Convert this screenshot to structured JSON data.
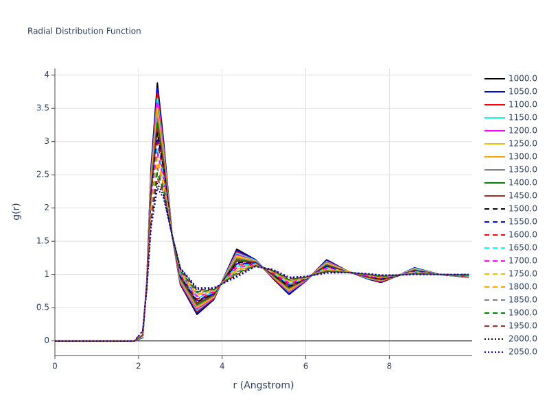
{
  "chart_data": {
    "type": "line",
    "title": "Radial Distribution Function",
    "x_label": "r (Angstrom)",
    "y_label": "g(r)",
    "xlim": [
      0,
      9.98
    ],
    "ylim": [
      -0.22,
      4.1
    ],
    "xticks": [
      0,
      2,
      4,
      6,
      8
    ],
    "yticks": [
      0,
      0.5,
      1,
      1.5,
      2,
      2.5,
      3,
      3.5,
      4
    ],
    "grid": true,
    "legend": "right",
    "x": [
      0,
      1.9,
      2.1,
      2.2,
      2.3,
      2.45,
      2.6,
      2.8,
      3.0,
      3.4,
      3.8,
      4.35,
      4.8,
      5.2,
      5.6,
      6.0,
      6.5,
      7.0,
      7.5,
      7.8,
      8.2,
      8.6,
      9.2,
      9.9
    ],
    "series": [
      {
        "name": "1000.0",
        "color": "#000000",
        "dash": "solid",
        "values": [
          0,
          0,
          0.05,
          0.9,
          2.6,
          3.88,
          3.0,
          1.6,
          0.85,
          0.4,
          0.62,
          1.38,
          1.22,
          0.95,
          0.7,
          0.9,
          1.22,
          1.05,
          0.93,
          0.88,
          0.98,
          1.1,
          1.0,
          0.96
        ]
      },
      {
        "name": "1050.0",
        "color": "#0000ff",
        "dash": "solid",
        "values": [
          0,
          0,
          0.05,
          0.9,
          2.56,
          3.8,
          2.96,
          1.6,
          0.86,
          0.42,
          0.63,
          1.36,
          1.22,
          0.96,
          0.71,
          0.9,
          1.21,
          1.05,
          0.93,
          0.89,
          0.98,
          1.1,
          1.0,
          0.96
        ]
      },
      {
        "name": "1100.0",
        "color": "#ff0000",
        "dash": "solid",
        "values": [
          0,
          0,
          0.06,
          0.89,
          2.51,
          3.73,
          2.92,
          1.6,
          0.87,
          0.44,
          0.64,
          1.34,
          1.21,
          0.96,
          0.73,
          0.91,
          1.2,
          1.05,
          0.94,
          0.89,
          0.98,
          1.09,
          1.0,
          0.96
        ]
      },
      {
        "name": "1150.0",
        "color": "#00ffff",
        "dash": "solid",
        "values": [
          0,
          0,
          0.06,
          0.89,
          2.47,
          3.65,
          2.88,
          1.6,
          0.89,
          0.46,
          0.65,
          1.32,
          1.21,
          0.97,
          0.74,
          0.91,
          1.19,
          1.05,
          0.94,
          0.9,
          0.98,
          1.09,
          1.0,
          0.97
        ]
      },
      {
        "name": "1200.0",
        "color": "#ff00ff",
        "dash": "solid",
        "values": [
          0,
          0,
          0.07,
          0.88,
          2.43,
          3.58,
          2.84,
          1.6,
          0.9,
          0.48,
          0.65,
          1.3,
          1.2,
          0.97,
          0.75,
          0.91,
          1.18,
          1.05,
          0.95,
          0.9,
          0.98,
          1.08,
          1.0,
          0.97
        ]
      },
      {
        "name": "1250.0",
        "color": "#f2c200",
        "dash": "solid",
        "values": [
          0,
          0,
          0.07,
          0.88,
          2.39,
          3.5,
          2.8,
          1.6,
          0.91,
          0.5,
          0.66,
          1.28,
          1.2,
          0.98,
          0.76,
          0.92,
          1.17,
          1.05,
          0.95,
          0.91,
          0.98,
          1.08,
          1.0,
          0.97
        ]
      },
      {
        "name": "1300.0",
        "color": "#ffa500",
        "dash": "solid",
        "values": [
          0,
          0,
          0.08,
          0.87,
          2.34,
          3.43,
          2.76,
          1.6,
          0.92,
          0.51,
          0.67,
          1.26,
          1.19,
          0.99,
          0.77,
          0.92,
          1.16,
          1.04,
          0.95,
          0.91,
          0.98,
          1.07,
          1.0,
          0.97
        ]
      },
      {
        "name": "1350.0",
        "color": "#808080",
        "dash": "solid",
        "values": [
          0,
          0,
          0.08,
          0.87,
          2.3,
          3.35,
          2.72,
          1.6,
          0.93,
          0.53,
          0.68,
          1.24,
          1.19,
          0.99,
          0.79,
          0.92,
          1.15,
          1.04,
          0.96,
          0.92,
          0.98,
          1.07,
          1.0,
          0.97
        ]
      },
      {
        "name": "1400.0",
        "color": "#008000",
        "dash": "solid",
        "values": [
          0,
          0,
          0.09,
          0.86,
          2.26,
          3.28,
          2.68,
          1.6,
          0.95,
          0.55,
          0.69,
          1.22,
          1.18,
          1.0,
          0.8,
          0.93,
          1.14,
          1.04,
          0.96,
          0.92,
          0.98,
          1.06,
          1.0,
          0.98
        ]
      },
      {
        "name": "1450.0",
        "color": "#a52a2a",
        "dash": "solid",
        "values": [
          0,
          0,
          0.09,
          0.86,
          2.21,
          3.2,
          2.64,
          1.6,
          0.96,
          0.57,
          0.7,
          1.2,
          1.18,
          1.01,
          0.81,
          0.93,
          1.13,
          1.04,
          0.96,
          0.93,
          0.98,
          1.06,
          1.0,
          0.98
        ]
      },
      {
        "name": "1500.0",
        "color": "#000000",
        "dash": "dash",
        "values": [
          0,
          0,
          0.1,
          0.85,
          2.17,
          3.13,
          2.6,
          1.6,
          0.97,
          0.59,
          0.71,
          1.18,
          1.17,
          1.01,
          0.82,
          0.93,
          1.12,
          1.04,
          0.97,
          0.93,
          0.98,
          1.05,
          1.0,
          0.98
        ]
      },
      {
        "name": "1550.0",
        "color": "#0000ff",
        "dash": "dash",
        "values": [
          0,
          0,
          0.1,
          0.85,
          2.13,
          3.05,
          2.55,
          1.6,
          0.98,
          0.61,
          0.71,
          1.16,
          1.17,
          1.02,
          0.84,
          0.94,
          1.12,
          1.04,
          0.97,
          0.94,
          0.99,
          1.05,
          1.0,
          0.98
        ]
      },
      {
        "name": "1600.0",
        "color": "#ff0000",
        "dash": "dash",
        "values": [
          0,
          0,
          0.11,
          0.84,
          2.09,
          2.98,
          2.51,
          1.6,
          0.99,
          0.63,
          0.72,
          1.14,
          1.16,
          1.02,
          0.85,
          0.94,
          1.11,
          1.04,
          0.98,
          0.94,
          0.99,
          1.04,
          1.0,
          0.98
        ]
      },
      {
        "name": "1650.0",
        "color": "#00ffff",
        "dash": "dash",
        "values": [
          0,
          0,
          0.11,
          0.84,
          2.04,
          2.9,
          2.47,
          1.6,
          1.0,
          0.65,
          0.73,
          1.12,
          1.16,
          1.03,
          0.86,
          0.94,
          1.1,
          1.04,
          0.98,
          0.95,
          0.99,
          1.04,
          1.0,
          0.98
        ]
      },
      {
        "name": "1700.0",
        "color": "#ff00ff",
        "dash": "dash",
        "values": [
          0,
          0,
          0.12,
          0.83,
          2.0,
          2.83,
          2.43,
          1.6,
          1.02,
          0.67,
          0.74,
          1.1,
          1.15,
          1.04,
          0.87,
          0.95,
          1.09,
          1.04,
          0.98,
          0.95,
          0.99,
          1.03,
          1.0,
          0.99
        ]
      },
      {
        "name": "1750.0",
        "color": "#f2c200",
        "dash": "dash",
        "values": [
          0,
          0,
          0.12,
          0.83,
          1.96,
          2.75,
          2.39,
          1.6,
          1.03,
          0.69,
          0.75,
          1.08,
          1.15,
          1.04,
          0.89,
          0.95,
          1.08,
          1.04,
          0.99,
          0.96,
          0.99,
          1.03,
          1.0,
          0.99
        ]
      },
      {
        "name": "1800.0",
        "color": "#ffa500",
        "dash": "dash",
        "values": [
          0,
          0,
          0.13,
          0.82,
          1.91,
          2.68,
          2.35,
          1.6,
          1.04,
          0.7,
          0.76,
          1.06,
          1.14,
          1.05,
          0.9,
          0.95,
          1.07,
          1.03,
          0.99,
          0.96,
          0.99,
          1.02,
          1.0,
          0.99
        ]
      },
      {
        "name": "1850.0",
        "color": "#808080",
        "dash": "dash",
        "values": [
          0,
          0,
          0.13,
          0.82,
          1.87,
          2.6,
          2.31,
          1.6,
          1.05,
          0.72,
          0.77,
          1.04,
          1.14,
          1.06,
          0.91,
          0.96,
          1.06,
          1.03,
          1.0,
          0.97,
          0.99,
          1.02,
          1.0,
          0.99
        ]
      },
      {
        "name": "1900.0",
        "color": "#008000",
        "dash": "dash",
        "values": [
          0,
          0,
          0.14,
          0.81,
          1.83,
          2.53,
          2.27,
          1.6,
          1.06,
          0.74,
          0.77,
          1.02,
          1.13,
          1.06,
          0.92,
          0.96,
          1.05,
          1.03,
          1.0,
          0.97,
          0.99,
          1.01,
          1.0,
          0.99
        ]
      },
      {
        "name": "1950.0",
        "color": "#a52a2a",
        "dash": "dash",
        "values": [
          0,
          0,
          0.14,
          0.81,
          1.79,
          2.45,
          2.23,
          1.6,
          1.08,
          0.76,
          0.78,
          1.0,
          1.13,
          1.07,
          0.94,
          0.96,
          1.04,
          1.03,
          1.0,
          0.98,
          0.99,
          1.01,
          1.0,
          1.0
        ]
      },
      {
        "name": "2000.0",
        "color": "#000000",
        "dash": "dot",
        "values": [
          0,
          0,
          0.15,
          0.8,
          1.74,
          2.37,
          2.19,
          1.6,
          1.09,
          0.78,
          0.79,
          0.98,
          1.12,
          1.07,
          0.95,
          0.97,
          1.03,
          1.03,
          1.01,
          0.99,
          0.99,
          1.0,
          1.0,
          1.0
        ]
      },
      {
        "name": "2050.0",
        "color": "#0000ff",
        "dash": "dot",
        "values": [
          0,
          0,
          0.15,
          0.8,
          1.7,
          2.3,
          2.15,
          1.6,
          1.1,
          0.8,
          0.8,
          0.96,
          1.12,
          1.08,
          0.96,
          0.97,
          1.02,
          1.03,
          1.01,
          0.99,
          0.99,
          1.0,
          1.0,
          1.0
        ]
      }
    ]
  }
}
